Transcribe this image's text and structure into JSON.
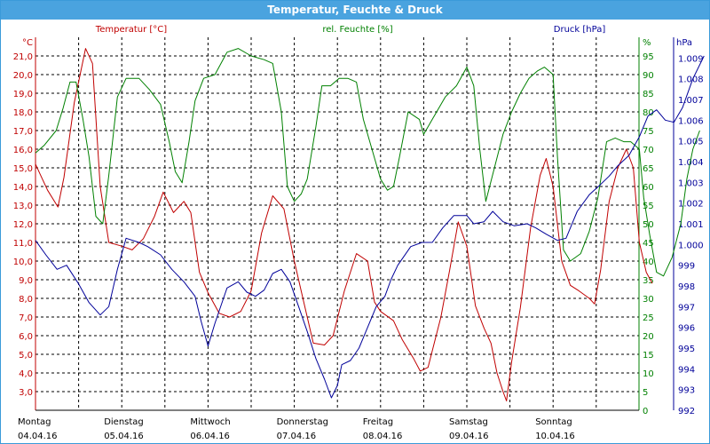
{
  "window": {
    "title": "Temperatur, Feuchte & Druck"
  },
  "colors": {
    "temperature": "#c00000",
    "humidity": "#008000",
    "pressure": "#000099",
    "grid": "#000000",
    "titlebar": "#4aa3df"
  },
  "chart_data": {
    "type": "line",
    "title": "Temperatur, Feuchte & Druck",
    "grid": true,
    "axes": {
      "temperature": {
        "label": "Temperatur [°C]",
        "unit": "°C",
        "range": [
          2.0,
          22.0
        ],
        "ticks": [
          "3,0",
          "4,0",
          "5,0",
          "6,0",
          "7,0",
          "8,0",
          "9,0",
          "10,0",
          "11,0",
          "12,0",
          "13,0",
          "14,0",
          "15,0",
          "16,0",
          "17,0",
          "18,0",
          "19,0",
          "20,0",
          "21,0"
        ]
      },
      "humidity": {
        "label": "rel. Feuchte [%]",
        "unit": "%",
        "range": [
          0,
          100
        ],
        "ticks": [
          "0",
          "5",
          "10",
          "15",
          "20",
          "25",
          "30",
          "35",
          "40",
          "45",
          "50",
          "55",
          "60",
          "65",
          "70",
          "75",
          "80",
          "85",
          "90",
          "95"
        ]
      },
      "pressure": {
        "label": "Druck [hPa]",
        "unit": "hPa",
        "range": [
          992,
          1010
        ],
        "ticks": [
          "992",
          "993",
          "994",
          "995",
          "996",
          "997",
          "998",
          "999",
          "1.000",
          "1.001",
          "1.002",
          "1.003",
          "1.004",
          "1.005",
          "1.006",
          "1.007",
          "1.008",
          "1.009"
        ]
      }
    },
    "x_labels": [
      {
        "day": "Montag",
        "date": "04.04.16"
      },
      {
        "day": "Dienstag",
        "date": "05.04.16"
      },
      {
        "day": "Mittwoch",
        "date": "06.04.16"
      },
      {
        "day": "Donnerstag",
        "date": "07.04.16"
      },
      {
        "day": "Freitag",
        "date": "08.04.16"
      },
      {
        "day": "Samstag",
        "date": "09.04.16"
      },
      {
        "day": "Sonntag",
        "date": "10.04.16"
      }
    ],
    "x_range_days": [
      0,
      7
    ],
    "series": [
      {
        "name": "Temperatur [°C]",
        "axis": "temperature",
        "color": "#c00000",
        "points": [
          [
            0,
            15.2
          ],
          [
            0.06,
            14.6
          ],
          [
            0.14,
            13.8
          ],
          [
            0.26,
            12.9
          ],
          [
            0.33,
            14.5
          ],
          [
            0.45,
            18.5
          ],
          [
            0.58,
            21.4
          ],
          [
            0.66,
            20.6
          ],
          [
            0.75,
            14.0
          ],
          [
            0.85,
            11.0
          ],
          [
            1.0,
            10.8
          ],
          [
            1.12,
            10.6
          ],
          [
            1.25,
            11.2
          ],
          [
            1.38,
            12.4
          ],
          [
            1.48,
            13.7
          ],
          [
            1.6,
            12.6
          ],
          [
            1.72,
            13.2
          ],
          [
            1.8,
            12.6
          ],
          [
            1.9,
            9.4
          ],
          [
            2.0,
            8.3
          ],
          [
            2.13,
            7.2
          ],
          [
            2.25,
            7.0
          ],
          [
            2.38,
            7.3
          ],
          [
            2.5,
            8.4
          ],
          [
            2.62,
            11.5
          ],
          [
            2.75,
            13.5
          ],
          [
            2.88,
            12.8
          ],
          [
            3.0,
            10.0
          ],
          [
            3.1,
            8.0
          ],
          [
            3.22,
            5.6
          ],
          [
            3.35,
            5.5
          ],
          [
            3.45,
            6.0
          ],
          [
            3.58,
            8.4
          ],
          [
            3.72,
            10.4
          ],
          [
            3.85,
            10.0
          ],
          [
            3.93,
            7.8
          ],
          [
            4.0,
            7.3
          ],
          [
            4.15,
            6.8
          ],
          [
            4.25,
            5.8
          ],
          [
            4.38,
            4.8
          ],
          [
            4.46,
            4.1
          ],
          [
            4.55,
            4.3
          ],
          [
            4.7,
            7.0
          ],
          [
            4.8,
            9.5
          ],
          [
            4.9,
            12.1
          ],
          [
            5.0,
            10.8
          ],
          [
            5.1,
            7.6
          ],
          [
            5.2,
            6.4
          ],
          [
            5.28,
            5.6
          ],
          [
            5.35,
            4.0
          ],
          [
            5.42,
            3.0
          ],
          [
            5.46,
            2.5
          ],
          [
            5.52,
            4.6
          ],
          [
            5.62,
            7.5
          ],
          [
            5.74,
            11.8
          ],
          [
            5.85,
            14.6
          ],
          [
            5.92,
            15.5
          ],
          [
            6.0,
            14.0
          ],
          [
            6.1,
            10.0
          ],
          [
            6.2,
            8.7
          ],
          [
            6.3,
            8.4
          ],
          [
            6.42,
            8.0
          ],
          [
            6.48,
            7.7
          ],
          [
            6.55,
            9.5
          ],
          [
            6.65,
            13.2
          ],
          [
            6.75,
            15.0
          ],
          [
            6.85,
            16.0
          ],
          [
            6.93,
            15.0
          ],
          [
            7.0,
            11.0
          ],
          [
            7.08,
            9.4
          ],
          [
            7.15,
            8.8
          ]
        ]
      },
      {
        "name": "rel. Feuchte [%]",
        "axis": "humidity",
        "color": "#008000",
        "points": [
          [
            0,
            69
          ],
          [
            0.1,
            71
          ],
          [
            0.24,
            75
          ],
          [
            0.32,
            81
          ],
          [
            0.4,
            88
          ],
          [
            0.47,
            88
          ],
          [
            0.55,
            78
          ],
          [
            0.62,
            68
          ],
          [
            0.7,
            52
          ],
          [
            0.78,
            50
          ],
          [
            0.85,
            63
          ],
          [
            0.95,
            84
          ],
          [
            1.05,
            89
          ],
          [
            1.2,
            89
          ],
          [
            1.32,
            86
          ],
          [
            1.45,
            82
          ],
          [
            1.55,
            72
          ],
          [
            1.62,
            64
          ],
          [
            1.7,
            61
          ],
          [
            1.78,
            72
          ],
          [
            1.85,
            83
          ],
          [
            1.95,
            89
          ],
          [
            2.08,
            90
          ],
          [
            2.22,
            96
          ],
          [
            2.35,
            97
          ],
          [
            2.5,
            95
          ],
          [
            2.65,
            94
          ],
          [
            2.75,
            93
          ],
          [
            2.85,
            80
          ],
          [
            2.92,
            60
          ],
          [
            3.0,
            56
          ],
          [
            3.08,
            58
          ],
          [
            3.15,
            62
          ],
          [
            3.25,
            76
          ],
          [
            3.32,
            87
          ],
          [
            3.42,
            87
          ],
          [
            3.52,
            89
          ],
          [
            3.62,
            89
          ],
          [
            3.72,
            88
          ],
          [
            3.8,
            78
          ],
          [
            3.9,
            70
          ],
          [
            4.0,
            62
          ],
          [
            4.08,
            59
          ],
          [
            4.15,
            60
          ],
          [
            4.22,
            68
          ],
          [
            4.32,
            80
          ],
          [
            4.45,
            78
          ],
          [
            4.5,
            74
          ],
          [
            4.6,
            78
          ],
          [
            4.75,
            84
          ],
          [
            4.88,
            87
          ],
          [
            5.0,
            92
          ],
          [
            5.08,
            87
          ],
          [
            5.15,
            70
          ],
          [
            5.22,
            56
          ],
          [
            5.32,
            65
          ],
          [
            5.42,
            74
          ],
          [
            5.52,
            80
          ],
          [
            5.62,
            85
          ],
          [
            5.72,
            89
          ],
          [
            5.82,
            91
          ],
          [
            5.9,
            92
          ],
          [
            6.0,
            90
          ],
          [
            6.05,
            68
          ],
          [
            6.12,
            43
          ],
          [
            6.2,
            40
          ],
          [
            6.32,
            42
          ],
          [
            6.42,
            48
          ],
          [
            6.52,
            57
          ],
          [
            6.62,
            72
          ],
          [
            6.72,
            73
          ],
          [
            6.82,
            72
          ],
          [
            6.9,
            72
          ],
          [
            7.0,
            70
          ],
          [
            7.05,
            57
          ],
          [
            7.12,
            47
          ],
          [
            7.2,
            37
          ],
          [
            7.28,
            36
          ],
          [
            7.38,
            41
          ],
          [
            7.48,
            50
          ],
          [
            7.55,
            62
          ],
          [
            7.62,
            70
          ],
          [
            7.7,
            75
          ]
        ]
      },
      {
        "name": "Druck [hPa]",
        "axis": "pressure",
        "color": "#000099",
        "points": [
          [
            0,
            1000.2
          ],
          [
            0.12,
            999.5
          ],
          [
            0.25,
            998.8
          ],
          [
            0.36,
            999.0
          ],
          [
            0.5,
            998.1
          ],
          [
            0.62,
            997.2
          ],
          [
            0.75,
            996.6
          ],
          [
            0.85,
            997.0
          ],
          [
            0.95,
            998.8
          ],
          [
            1.05,
            1000.3
          ],
          [
            1.2,
            1000.1
          ],
          [
            1.3,
            999.9
          ],
          [
            1.45,
            999.5
          ],
          [
            1.58,
            998.8
          ],
          [
            1.72,
            998.2
          ],
          [
            1.85,
            997.5
          ],
          [
            1.92,
            996.3
          ],
          [
            2.0,
            995.1
          ],
          [
            2.08,
            996.2
          ],
          [
            2.22,
            997.9
          ],
          [
            2.35,
            998.2
          ],
          [
            2.45,
            997.7
          ],
          [
            2.55,
            997.5
          ],
          [
            2.65,
            997.8
          ],
          [
            2.75,
            998.6
          ],
          [
            2.85,
            998.8
          ],
          [
            2.95,
            998.2
          ],
          [
            3.05,
            997.0
          ],
          [
            3.15,
            995.8
          ],
          [
            3.25,
            994.5
          ],
          [
            3.35,
            993.5
          ],
          [
            3.43,
            992.6
          ],
          [
            3.5,
            993.2
          ],
          [
            3.55,
            994.2
          ],
          [
            3.65,
            994.4
          ],
          [
            3.75,
            995.0
          ],
          [
            3.85,
            996.0
          ],
          [
            3.95,
            997.0
          ],
          [
            4.05,
            997.5
          ],
          [
            4.12,
            998.3
          ],
          [
            4.2,
            999.0
          ],
          [
            4.35,
            999.9
          ],
          [
            4.48,
            1000.1
          ],
          [
            4.6,
            1000.1
          ],
          [
            4.72,
            1000.8
          ],
          [
            4.85,
            1001.4
          ],
          [
            5.0,
            1001.4
          ],
          [
            5.08,
            1001.0
          ],
          [
            5.2,
            1001.1
          ],
          [
            5.3,
            1001.6
          ],
          [
            5.42,
            1001.1
          ],
          [
            5.55,
            1000.9
          ],
          [
            5.7,
            1001.0
          ],
          [
            5.8,
            1000.8
          ],
          [
            5.92,
            1000.5
          ],
          [
            6.05,
            1000.2
          ],
          [
            6.15,
            1000.3
          ],
          [
            6.28,
            1001.6
          ],
          [
            6.42,
            1002.4
          ],
          [
            6.55,
            1002.9
          ],
          [
            6.65,
            1003.3
          ],
          [
            6.75,
            1003.8
          ],
          [
            6.88,
            1004.3
          ],
          [
            7.0,
            1005.2
          ],
          [
            7.1,
            1006.2
          ],
          [
            7.2,
            1006.5
          ],
          [
            7.3,
            1006.0
          ],
          [
            7.4,
            1005.9
          ],
          [
            7.5,
            1006.6
          ],
          [
            7.62,
            1008.0
          ],
          [
            7.75,
            1009.1
          ]
        ]
      }
    ]
  }
}
